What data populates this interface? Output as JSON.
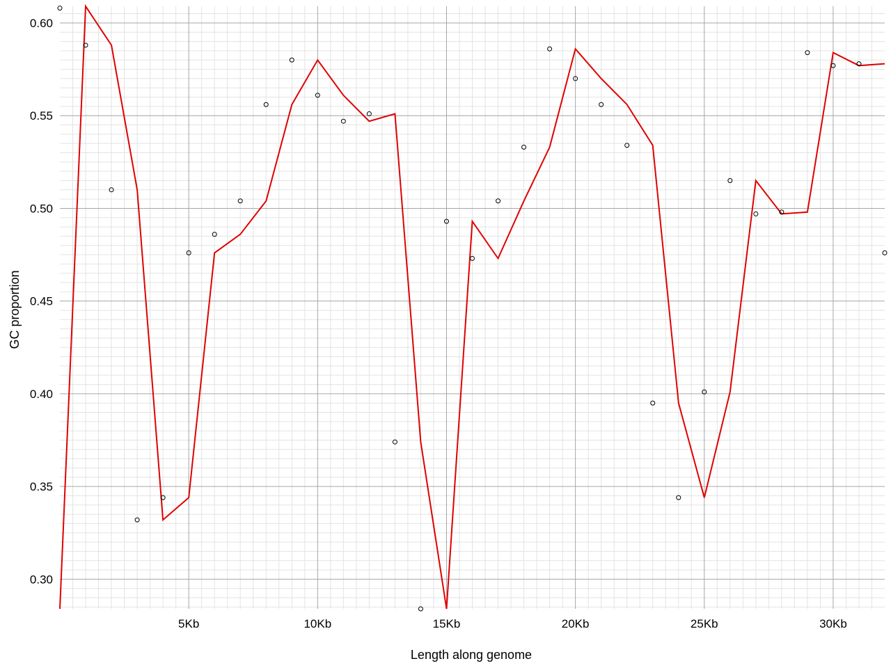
{
  "chart_data": {
    "type": "line",
    "xlabel": "Length along genome",
    "ylabel": "GC proportion",
    "xlim": [
      0,
      32000
    ],
    "ylim": [
      0.284,
      0.609
    ],
    "x_ticks": [
      {
        "value": 5000,
        "label": "5Kb"
      },
      {
        "value": 10000,
        "label": "10Kb"
      },
      {
        "value": 15000,
        "label": "15Kb"
      },
      {
        "value": 20000,
        "label": "20Kb"
      },
      {
        "value": 25000,
        "label": "25Kb"
      },
      {
        "value": 30000,
        "label": "30Kb"
      }
    ],
    "y_ticks": [
      {
        "value": 0.3,
        "label": "0.30"
      },
      {
        "value": 0.35,
        "label": "0.35"
      },
      {
        "value": 0.4,
        "label": "0.40"
      },
      {
        "value": 0.45,
        "label": "0.45"
      },
      {
        "value": 0.5,
        "label": "0.50"
      },
      {
        "value": 0.55,
        "label": "0.55"
      },
      {
        "value": 0.6,
        "label": "0.60"
      }
    ],
    "grid": true,
    "colors": {
      "line": "#e00000",
      "points": "#000000",
      "grid_major": "#a6a6a6",
      "grid_minor": "#e3e3e3"
    },
    "points": {
      "x": [
        0,
        1000,
        2000,
        3000,
        4000,
        5000,
        6000,
        7000,
        8000,
        9000,
        10000,
        11000,
        12000,
        13000,
        14000,
        15000,
        16000,
        17000,
        18000,
        19000,
        20000,
        21000,
        22000,
        23000,
        24000,
        25000,
        26000,
        27000,
        28000,
        29000,
        30000,
        31000,
        32000
      ],
      "y": [
        0.608,
        0.588,
        0.51,
        0.332,
        0.344,
        0.476,
        0.486,
        0.504,
        0.556,
        0.58,
        0.561,
        0.547,
        0.551,
        0.374,
        0.284,
        0.493,
        0.473,
        0.504,
        0.533,
        0.586,
        0.57,
        0.556,
        0.534,
        0.395,
        0.344,
        0.401,
        0.515,
        0.497,
        0.498,
        0.584,
        0.577,
        0.578,
        0.476
      ]
    },
    "line": {
      "x": [
        0,
        1000,
        2000,
        3000,
        4000,
        5000,
        6000,
        7000,
        8000,
        9000,
        10000,
        11000,
        12000,
        13000,
        14000,
        15000,
        16000,
        17000,
        18000,
        19000,
        20000,
        21000,
        22000,
        23000,
        24000,
        25000,
        26000,
        27000,
        28000,
        29000,
        30000,
        31000,
        32000
      ],
      "y": [
        0.284,
        0.609,
        0.588,
        0.51,
        0.332,
        0.344,
        0.476,
        0.486,
        0.504,
        0.556,
        0.58,
        0.561,
        0.547,
        0.551,
        0.374,
        0.284,
        0.493,
        0.473,
        0.504,
        0.533,
        0.586,
        0.57,
        0.556,
        0.534,
        0.395,
        0.344,
        0.401,
        0.515,
        0.497,
        0.498,
        0.584,
        0.577,
        0.578
      ]
    }
  }
}
